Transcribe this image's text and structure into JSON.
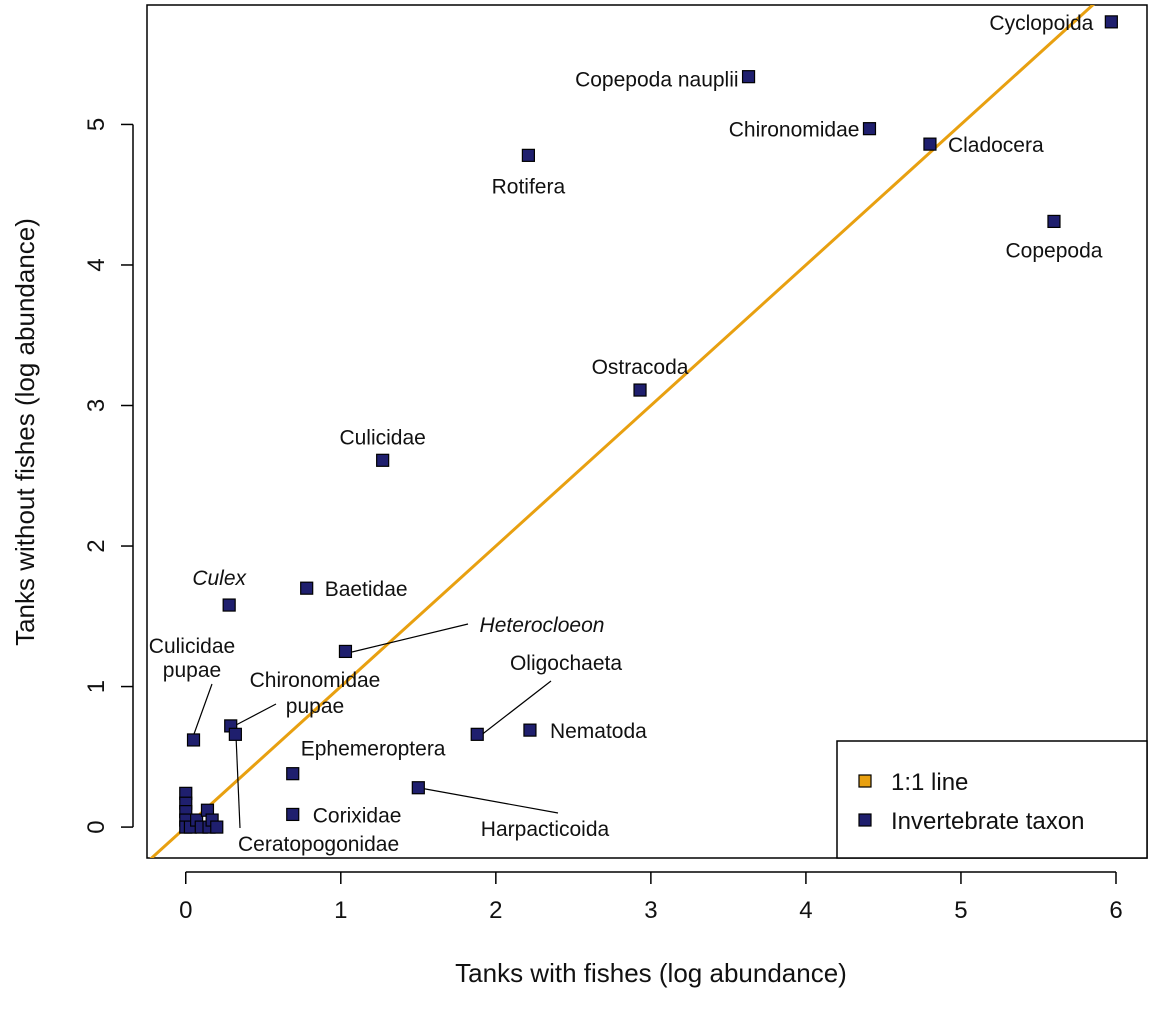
{
  "chart_data": {
    "type": "scatter",
    "xlabel": "Tanks with fishes (log abundance)",
    "ylabel": "Tanks without fishes (log abundance)",
    "xlim": [
      -0.25,
      6.2
    ],
    "ylim": [
      -0.22,
      5.85
    ],
    "x_ticks": [
      "0",
      "1",
      "2",
      "3",
      "4",
      "5",
      "6"
    ],
    "y_ticks": [
      "0",
      "1",
      "2",
      "3",
      "4",
      "5"
    ],
    "grid": false,
    "legend_position": "bottom-right",
    "reference_line": {
      "name": "1:1 line",
      "slope": 1,
      "intercept": 0,
      "color": "#E8A010"
    },
    "marker_color": "#1F1F6E",
    "legend": [
      {
        "label": "1:1 line",
        "color": "#E8A010"
      },
      {
        "label": "Invertebrate taxon",
        "color": "#1F1F6E"
      }
    ],
    "points": [
      {
        "label": "Cyclopoida",
        "x": 5.97,
        "y": 5.73,
        "italic": false
      },
      {
        "label": "Copepoda nauplii",
        "x": 3.63,
        "y": 5.34,
        "italic": false
      },
      {
        "label": "Chironomidae",
        "x": 4.41,
        "y": 4.97,
        "italic": false
      },
      {
        "label": "Cladocera",
        "x": 4.8,
        "y": 4.86,
        "italic": false
      },
      {
        "label": "Rotifera",
        "x": 2.21,
        "y": 4.78,
        "italic": false
      },
      {
        "label": "Copepoda",
        "x": 5.6,
        "y": 4.31,
        "italic": false
      },
      {
        "label": "Ostracoda",
        "x": 2.93,
        "y": 3.11,
        "italic": false
      },
      {
        "label": "Culicidae",
        "x": 1.27,
        "y": 2.61,
        "italic": false
      },
      {
        "label": "Baetidae",
        "x": 0.78,
        "y": 1.7,
        "italic": false
      },
      {
        "label": "Culex",
        "x": 0.28,
        "y": 1.58,
        "italic": true
      },
      {
        "label": "Heterocloeon",
        "x": 1.03,
        "y": 1.25,
        "italic": true
      },
      {
        "label": "Culicidae pupae",
        "x": 0.05,
        "y": 0.62,
        "italic": false
      },
      {
        "label": "Chironomidae pupae",
        "x": 0.29,
        "y": 0.72,
        "italic": false
      },
      {
        "label": "Ceratopogonidae",
        "x": 0.32,
        "y": 0.66,
        "italic": false
      },
      {
        "label": "Oligochaeta",
        "x": 1.88,
        "y": 0.66,
        "italic": false
      },
      {
        "label": "Nematoda",
        "x": 2.22,
        "y": 0.69,
        "italic": false
      },
      {
        "label": "Ephemeroptera",
        "x": 0.69,
        "y": 0.38,
        "italic": false
      },
      {
        "label": "Harpacticoida",
        "x": 1.5,
        "y": 0.28,
        "italic": false
      },
      {
        "label": "Corixidae",
        "x": 0.69,
        "y": 0.09,
        "italic": false
      }
    ],
    "unlabeled_points": [
      {
        "x": 0.0,
        "y": 0.24
      },
      {
        "x": 0.0,
        "y": 0.17
      },
      {
        "x": 0.0,
        "y": 0.11
      },
      {
        "x": 0.0,
        "y": 0.05
      },
      {
        "x": 0.0,
        "y": 0.0
      },
      {
        "x": 0.03,
        "y": 0.0
      },
      {
        "x": 0.07,
        "y": 0.05
      },
      {
        "x": 0.1,
        "y": 0.0
      },
      {
        "x": 0.14,
        "y": 0.12
      },
      {
        "x": 0.15,
        "y": 0.0
      },
      {
        "x": 0.17,
        "y": 0.05
      },
      {
        "x": 0.2,
        "y": 0.0
      }
    ]
  }
}
